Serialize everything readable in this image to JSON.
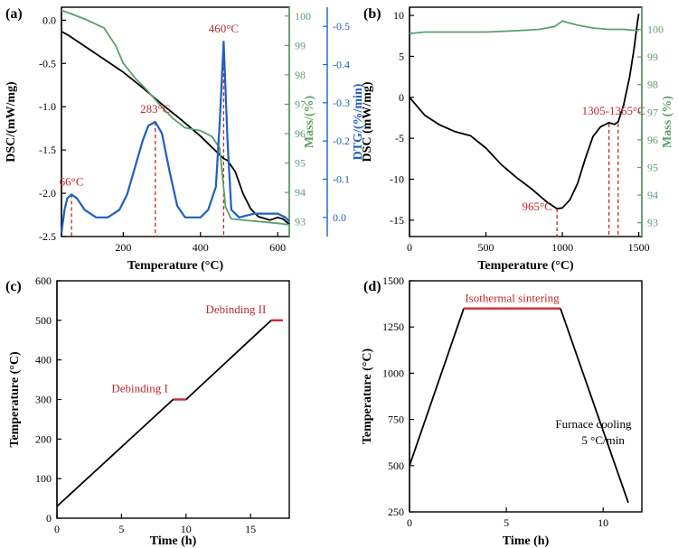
{
  "chart_data": [
    {
      "panel": "(a)",
      "type": "line",
      "xlabel": "Temperature (°C)",
      "xlim": [
        40,
        630
      ],
      "xticks": [
        "200",
        "400",
        "600"
      ],
      "axes": {
        "left": {
          "label": "DSC/(mW/mg)",
          "lim": [
            -2.5,
            0.15
          ],
          "ticks": [
            "-2.5",
            "-2.0",
            "-1.5",
            "-1.0",
            "-0.5",
            "0.0"
          ],
          "color": "#000000"
        },
        "right1": {
          "label": "Mass/(%)",
          "lim": [
            92.5,
            100.3
          ],
          "ticks": [
            "93",
            "94",
            "95",
            "96",
            "97",
            "98",
            "99",
            "100"
          ],
          "color": "#5aa06a"
        },
        "right2": {
          "label": "DTG/(%/min)",
          "lim": [
            0.05,
            -0.55
          ],
          "ticks": [
            "0.0",
            "-0.1",
            "-0.2",
            "-0.3",
            "-0.4",
            "-0.5"
          ],
          "color": "#1f5fbf"
        }
      },
      "series": [
        {
          "axis": "left",
          "color": "#000000",
          "x": [
            40,
            60,
            100,
            150,
            200,
            250,
            300,
            350,
            400,
            430,
            460,
            470,
            490,
            510,
            530,
            550,
            580,
            600,
            615,
            630
          ],
          "y": [
            -0.13,
            -0.18,
            -0.3,
            -0.45,
            -0.6,
            -0.78,
            -0.97,
            -1.15,
            -1.34,
            -1.47,
            -1.6,
            -1.62,
            -1.75,
            -2.0,
            -2.18,
            -2.27,
            -2.31,
            -2.28,
            -2.3,
            -2.36
          ]
        },
        {
          "axis": "right1",
          "color": "#5aa06a",
          "x": [
            40,
            60,
            100,
            150,
            180,
            200,
            230,
            260,
            280,
            300,
            330,
            360,
            400,
            430,
            450,
            465,
            480,
            520,
            560,
            600,
            630
          ],
          "y": [
            100.2,
            100.1,
            99.9,
            99.6,
            99.0,
            98.4,
            97.9,
            97.5,
            97.2,
            96.9,
            96.5,
            96.2,
            96.1,
            95.9,
            95.5,
            93.5,
            93.1,
            93.05,
            93.0,
            92.95,
            92.9
          ]
        },
        {
          "axis": "right2",
          "color": "#1f5fbf",
          "x": [
            40,
            48,
            55,
            66,
            80,
            100,
            130,
            160,
            190,
            210,
            230,
            250,
            265,
            283,
            300,
            320,
            340,
            360,
            380,
            400,
            420,
            440,
            450,
            460,
            470,
            480,
            500,
            540,
            580,
            600,
            620,
            630
          ],
          "y": [
            0.04,
            -0.02,
            -0.05,
            -0.06,
            -0.05,
            -0.02,
            0.0,
            0.0,
            -0.02,
            -0.06,
            -0.13,
            -0.2,
            -0.24,
            -0.25,
            -0.22,
            -0.12,
            -0.03,
            0.0,
            0.0,
            0.0,
            -0.02,
            -0.08,
            -0.25,
            -0.46,
            -0.2,
            -0.02,
            0.0,
            -0.01,
            -0.01,
            -0.01,
            0.0,
            0.01
          ]
        }
      ],
      "annotations": [
        {
          "text": "66°C",
          "x": 66,
          "axis": "right2",
          "y": -0.06,
          "drop_to": 0.05
        },
        {
          "text": "283°C",
          "x": 283,
          "axis": "right2",
          "y": -0.25,
          "drop_to": 0.05
        },
        {
          "text": "460°C",
          "x": 460,
          "axis": "right2",
          "y": -0.46,
          "drop_to": 0.05
        }
      ]
    },
    {
      "panel": "(b)",
      "type": "line",
      "xlabel": "Temperature (°C)",
      "xlim": [
        0,
        1520
      ],
      "xticks": [
        "0",
        "500",
        "1000",
        "1500"
      ],
      "axes": {
        "left": {
          "label": "DSC (mW/mg)",
          "lim": [
            -17,
            11
          ],
          "ticks": [
            "-15",
            "-10",
            "-5",
            "0",
            "5",
            "10"
          ],
          "color": "#000000"
        },
        "right1": {
          "label": "Mass (%)",
          "lim": [
            92.5,
            100.8
          ],
          "ticks": [
            "93",
            "94",
            "95",
            "96",
            "97",
            "98",
            "99",
            "100"
          ],
          "color": "#5aa06a"
        }
      },
      "series": [
        {
          "axis": "left",
          "color": "#000000",
          "x": [
            0,
            100,
            200,
            300,
            400,
            500,
            600,
            700,
            800,
            900,
            965,
            1000,
            1050,
            1100,
            1150,
            1200,
            1250,
            1305,
            1340,
            1365,
            1400,
            1440,
            1470,
            1490,
            1500
          ],
          "y": [
            0,
            -2.2,
            -3.4,
            -4.2,
            -4.7,
            -6.2,
            -8.2,
            -9.8,
            -11.2,
            -12.8,
            -13.6,
            -13.5,
            -12.5,
            -10.5,
            -7.5,
            -4.8,
            -3.6,
            -3.1,
            -3.3,
            -3.0,
            -1.0,
            2.5,
            6.0,
            9.0,
            10.2
          ]
        },
        {
          "axis": "right1",
          "color": "#5aa06a",
          "x": [
            0,
            100,
            300,
            500,
            700,
            850,
            950,
            1000,
            1030,
            1100,
            1200,
            1300,
            1400,
            1500
          ],
          "y": [
            99.85,
            99.9,
            99.9,
            99.9,
            99.95,
            100.0,
            100.1,
            100.3,
            100.25,
            100.15,
            100.05,
            100.0,
            100.0,
            99.95
          ]
        }
      ],
      "annotations": [
        {
          "text": "965°C",
          "x": 965,
          "axis": "left",
          "y": -13.6,
          "drop_to": -17
        },
        {
          "text": "1305-1365°C",
          "x": [
            1305,
            1365
          ],
          "axis": "left",
          "y": -3.2,
          "drop_to": -17
        }
      ]
    },
    {
      "panel": "(c)",
      "type": "line",
      "xlabel": "Time (h)",
      "ylabel": "Temperature (°C)",
      "xlim": [
        0,
        18
      ],
      "ylim": [
        0,
        600
      ],
      "xticks": [
        "0",
        "5",
        "10",
        "15"
      ],
      "yticks": [
        "0",
        "100",
        "200",
        "300",
        "400",
        "500",
        "600"
      ],
      "series": [
        {
          "color": "#000000",
          "x": [
            0,
            9.0,
            9.0,
            10.0,
            16.6
          ],
          "y": [
            30,
            300,
            300,
            300,
            500
          ]
        },
        {
          "color": "#d32a2a",
          "x": [
            9.0,
            10.0
          ],
          "y": [
            300,
            300
          ]
        },
        {
          "color": "#d32a2a",
          "x": [
            16.6,
            17.5
          ],
          "y": [
            500,
            500
          ]
        }
      ],
      "annotations": [
        {
          "text": "Debinding I",
          "x": 8.6,
          "y": 318
        },
        {
          "text": "Debinding II",
          "x": 16.2,
          "y": 518
        }
      ]
    },
    {
      "panel": "(d)",
      "type": "line",
      "xlabel": "Time (h)",
      "ylabel": "Temperature (°C)",
      "xlim": [
        0,
        12
      ],
      "ylim": [
        250,
        1500
      ],
      "xticks": [
        "0",
        "5",
        "10"
      ],
      "yticks": [
        "250",
        "500",
        "750",
        "1000",
        "1250",
        "1500"
      ],
      "series": [
        {
          "color": "#000000",
          "x": [
            0,
            2.8
          ],
          "y": [
            500,
            1350
          ]
        },
        {
          "color": "#d32a2a",
          "x": [
            2.8,
            7.8
          ],
          "y": [
            1350,
            1350
          ]
        },
        {
          "color": "#000000",
          "x": [
            7.8,
            11.3
          ],
          "y": [
            1350,
            300
          ]
        }
      ],
      "annotations": [
        {
          "text": "Isothermal sintering",
          "x": 5.3,
          "y": 1385
        },
        {
          "text": "Furnace cooling",
          "x": 9.5,
          "y": 705
        },
        {
          "text": "5 °C/min",
          "x": 10.0,
          "y": 615
        }
      ]
    }
  ]
}
